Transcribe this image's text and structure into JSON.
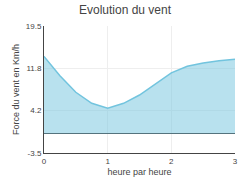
{
  "chart_data": {
    "type": "area",
    "title": "Evolution du vent",
    "xlabel": "heure par heure",
    "ylabel": "Force du vent en Km/h",
    "x": [
      0,
      0.25,
      0.5,
      0.75,
      1.0,
      1.25,
      1.5,
      1.75,
      2.0,
      2.25,
      2.5,
      2.75,
      3.0
    ],
    "values": [
      14.0,
      10.5,
      7.5,
      5.5,
      4.6,
      5.5,
      7.0,
      9.0,
      11.0,
      12.2,
      12.8,
      13.2,
      13.5
    ],
    "color": "#72c4de",
    "xlim": [
      0,
      3
    ],
    "xticks": [
      0,
      1,
      2,
      3
    ],
    "ylim": [
      -3.5,
      19.5
    ],
    "yticks": [
      -3.5,
      4.2,
      11.8,
      19.5
    ],
    "grid": true
  }
}
